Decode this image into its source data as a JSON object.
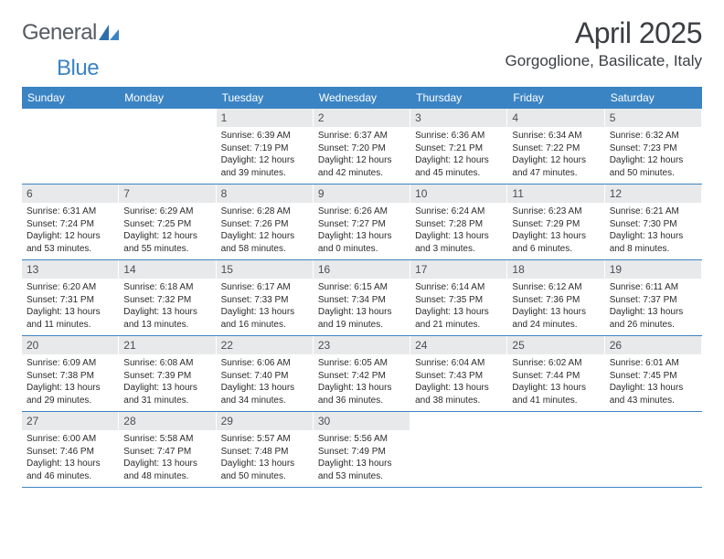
{
  "brand": {
    "text1": "General",
    "text2": "Blue",
    "icon_color1": "#2f6fab",
    "icon_color2": "#3b84c4"
  },
  "header": {
    "month_title": "April 2025",
    "location": "Gorgoglione, Basilicate, Italy"
  },
  "colors": {
    "header_bar": "#3b84c4",
    "daynum_bg": "#e8e9ea",
    "rule": "#3b84c4",
    "text": "#2b2b2b"
  },
  "weekdays": [
    "Sunday",
    "Monday",
    "Tuesday",
    "Wednesday",
    "Thursday",
    "Friday",
    "Saturday"
  ],
  "weeks": [
    [
      null,
      null,
      {
        "day": "1",
        "sunrise": "Sunrise: 6:39 AM",
        "sunset": "Sunset: 7:19 PM",
        "daylight": "Daylight: 12 hours and 39 minutes."
      },
      {
        "day": "2",
        "sunrise": "Sunrise: 6:37 AM",
        "sunset": "Sunset: 7:20 PM",
        "daylight": "Daylight: 12 hours and 42 minutes."
      },
      {
        "day": "3",
        "sunrise": "Sunrise: 6:36 AM",
        "sunset": "Sunset: 7:21 PM",
        "daylight": "Daylight: 12 hours and 45 minutes."
      },
      {
        "day": "4",
        "sunrise": "Sunrise: 6:34 AM",
        "sunset": "Sunset: 7:22 PM",
        "daylight": "Daylight: 12 hours and 47 minutes."
      },
      {
        "day": "5",
        "sunrise": "Sunrise: 6:32 AM",
        "sunset": "Sunset: 7:23 PM",
        "daylight": "Daylight: 12 hours and 50 minutes."
      }
    ],
    [
      {
        "day": "6",
        "sunrise": "Sunrise: 6:31 AM",
        "sunset": "Sunset: 7:24 PM",
        "daylight": "Daylight: 12 hours and 53 minutes."
      },
      {
        "day": "7",
        "sunrise": "Sunrise: 6:29 AM",
        "sunset": "Sunset: 7:25 PM",
        "daylight": "Daylight: 12 hours and 55 minutes."
      },
      {
        "day": "8",
        "sunrise": "Sunrise: 6:28 AM",
        "sunset": "Sunset: 7:26 PM",
        "daylight": "Daylight: 12 hours and 58 minutes."
      },
      {
        "day": "9",
        "sunrise": "Sunrise: 6:26 AM",
        "sunset": "Sunset: 7:27 PM",
        "daylight": "Daylight: 13 hours and 0 minutes."
      },
      {
        "day": "10",
        "sunrise": "Sunrise: 6:24 AM",
        "sunset": "Sunset: 7:28 PM",
        "daylight": "Daylight: 13 hours and 3 minutes."
      },
      {
        "day": "11",
        "sunrise": "Sunrise: 6:23 AM",
        "sunset": "Sunset: 7:29 PM",
        "daylight": "Daylight: 13 hours and 6 minutes."
      },
      {
        "day": "12",
        "sunrise": "Sunrise: 6:21 AM",
        "sunset": "Sunset: 7:30 PM",
        "daylight": "Daylight: 13 hours and 8 minutes."
      }
    ],
    [
      {
        "day": "13",
        "sunrise": "Sunrise: 6:20 AM",
        "sunset": "Sunset: 7:31 PM",
        "daylight": "Daylight: 13 hours and 11 minutes."
      },
      {
        "day": "14",
        "sunrise": "Sunrise: 6:18 AM",
        "sunset": "Sunset: 7:32 PM",
        "daylight": "Daylight: 13 hours and 13 minutes."
      },
      {
        "day": "15",
        "sunrise": "Sunrise: 6:17 AM",
        "sunset": "Sunset: 7:33 PM",
        "daylight": "Daylight: 13 hours and 16 minutes."
      },
      {
        "day": "16",
        "sunrise": "Sunrise: 6:15 AM",
        "sunset": "Sunset: 7:34 PM",
        "daylight": "Daylight: 13 hours and 19 minutes."
      },
      {
        "day": "17",
        "sunrise": "Sunrise: 6:14 AM",
        "sunset": "Sunset: 7:35 PM",
        "daylight": "Daylight: 13 hours and 21 minutes."
      },
      {
        "day": "18",
        "sunrise": "Sunrise: 6:12 AM",
        "sunset": "Sunset: 7:36 PM",
        "daylight": "Daylight: 13 hours and 24 minutes."
      },
      {
        "day": "19",
        "sunrise": "Sunrise: 6:11 AM",
        "sunset": "Sunset: 7:37 PM",
        "daylight": "Daylight: 13 hours and 26 minutes."
      }
    ],
    [
      {
        "day": "20",
        "sunrise": "Sunrise: 6:09 AM",
        "sunset": "Sunset: 7:38 PM",
        "daylight": "Daylight: 13 hours and 29 minutes."
      },
      {
        "day": "21",
        "sunrise": "Sunrise: 6:08 AM",
        "sunset": "Sunset: 7:39 PM",
        "daylight": "Daylight: 13 hours and 31 minutes."
      },
      {
        "day": "22",
        "sunrise": "Sunrise: 6:06 AM",
        "sunset": "Sunset: 7:40 PM",
        "daylight": "Daylight: 13 hours and 34 minutes."
      },
      {
        "day": "23",
        "sunrise": "Sunrise: 6:05 AM",
        "sunset": "Sunset: 7:42 PM",
        "daylight": "Daylight: 13 hours and 36 minutes."
      },
      {
        "day": "24",
        "sunrise": "Sunrise: 6:04 AM",
        "sunset": "Sunset: 7:43 PM",
        "daylight": "Daylight: 13 hours and 38 minutes."
      },
      {
        "day": "25",
        "sunrise": "Sunrise: 6:02 AM",
        "sunset": "Sunset: 7:44 PM",
        "daylight": "Daylight: 13 hours and 41 minutes."
      },
      {
        "day": "26",
        "sunrise": "Sunrise: 6:01 AM",
        "sunset": "Sunset: 7:45 PM",
        "daylight": "Daylight: 13 hours and 43 minutes."
      }
    ],
    [
      {
        "day": "27",
        "sunrise": "Sunrise: 6:00 AM",
        "sunset": "Sunset: 7:46 PM",
        "daylight": "Daylight: 13 hours and 46 minutes."
      },
      {
        "day": "28",
        "sunrise": "Sunrise: 5:58 AM",
        "sunset": "Sunset: 7:47 PM",
        "daylight": "Daylight: 13 hours and 48 minutes."
      },
      {
        "day": "29",
        "sunrise": "Sunrise: 5:57 AM",
        "sunset": "Sunset: 7:48 PM",
        "daylight": "Daylight: 13 hours and 50 minutes."
      },
      {
        "day": "30",
        "sunrise": "Sunrise: 5:56 AM",
        "sunset": "Sunset: 7:49 PM",
        "daylight": "Daylight: 13 hours and 53 minutes."
      },
      null,
      null,
      null
    ]
  ]
}
